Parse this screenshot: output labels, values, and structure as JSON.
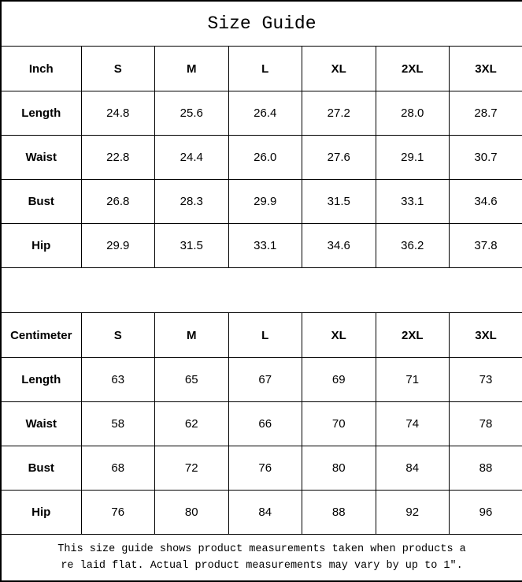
{
  "page": {
    "background": "#ffffff",
    "border_color": "#000000",
    "text_color": "#000000"
  },
  "title": "Size Guide",
  "tables": [
    {
      "header": [
        "Inch",
        "S",
        "M",
        "L",
        "XL",
        "2XL",
        "3XL"
      ],
      "rows": [
        {
          "label": "Length",
          "values": [
            "24.8",
            "25.6",
            "26.4",
            "27.2",
            "28.0",
            "28.7"
          ]
        },
        {
          "label": "Waist",
          "values": [
            "22.8",
            "24.4",
            "26.0",
            "27.6",
            "29.1",
            "30.7"
          ]
        },
        {
          "label": "Bust",
          "values": [
            "26.8",
            "28.3",
            "29.9",
            "31.5",
            "33.1",
            "34.6"
          ]
        },
        {
          "label": "Hip",
          "values": [
            "29.9",
            "31.5",
            "33.1",
            "34.6",
            "36.2",
            "37.8"
          ]
        }
      ]
    },
    {
      "header": [
        "Centimeter",
        "S",
        "M",
        "L",
        "XL",
        "2XL",
        "3XL"
      ],
      "rows": [
        {
          "label": "Length",
          "values": [
            "63",
            "65",
            "67",
            "69",
            "71",
            "73"
          ]
        },
        {
          "label": "Waist",
          "values": [
            "58",
            "62",
            "66",
            "70",
            "74",
            "78"
          ]
        },
        {
          "label": "Bust",
          "values": [
            "68",
            "72",
            "76",
            "80",
            "84",
            "88"
          ]
        },
        {
          "label": "Hip",
          "values": [
            "76",
            "80",
            "84",
            "88",
            "92",
            "96"
          ]
        }
      ]
    }
  ],
  "footer": {
    "line1": "This size guide shows product measurements taken when products a",
    "line2": "re laid flat. Actual product measurements may vary by up to 1″."
  },
  "chart_data": [
    {
      "type": "table",
      "title": "Size Guide",
      "unit": "Inch",
      "columns": [
        "Inch",
        "S",
        "M",
        "L",
        "XL",
        "2XL",
        "3XL"
      ],
      "rows": [
        [
          "Length",
          24.8,
          25.6,
          26.4,
          27.2,
          28.0,
          28.7
        ],
        [
          "Waist",
          22.8,
          24.4,
          26.0,
          27.6,
          29.1,
          30.7
        ],
        [
          "Bust",
          26.8,
          28.3,
          29.9,
          31.5,
          33.1,
          34.6
        ],
        [
          "Hip",
          29.9,
          31.5,
          33.1,
          34.6,
          36.2,
          37.8
        ]
      ]
    },
    {
      "type": "table",
      "title": "Size Guide",
      "unit": "Centimeter",
      "columns": [
        "Centimeter",
        "S",
        "M",
        "L",
        "XL",
        "2XL",
        "3XL"
      ],
      "rows": [
        [
          "Length",
          63,
          65,
          67,
          69,
          71,
          73
        ],
        [
          "Waist",
          58,
          62,
          66,
          70,
          74,
          78
        ],
        [
          "Bust",
          68,
          72,
          76,
          80,
          84,
          88
        ],
        [
          "Hip",
          76,
          80,
          84,
          88,
          92,
          96
        ]
      ]
    }
  ]
}
